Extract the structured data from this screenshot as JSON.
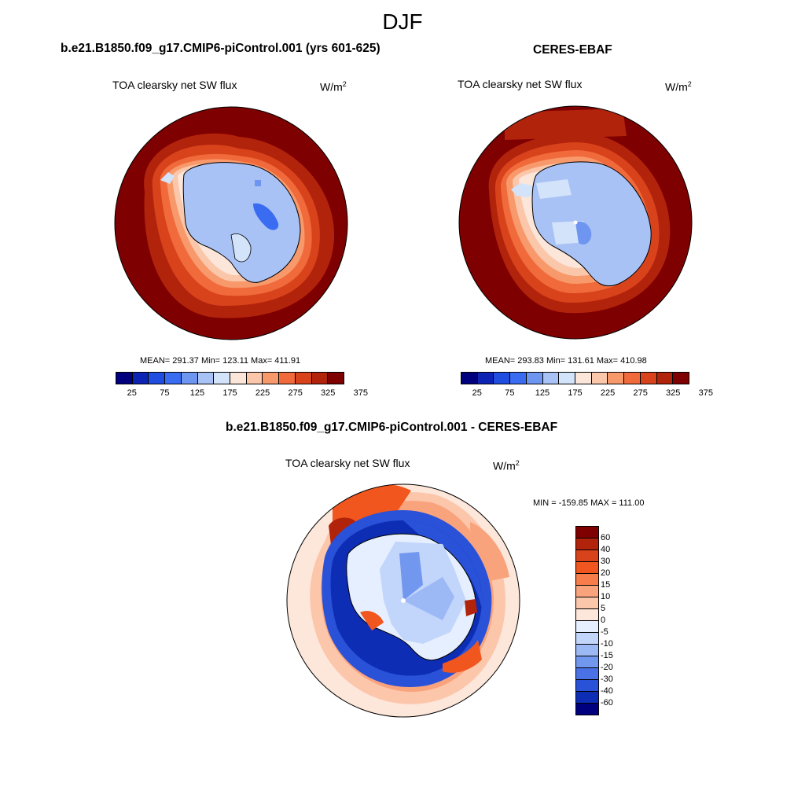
{
  "season": "DJF",
  "panels": {
    "model": {
      "title": "b.e21.B1850.f09_g17.CMIP6-piControl.001 (yrs 601-625)",
      "variable": "TOA clearsky net SW flux",
      "units_base": "W/m",
      "units_exp": "2",
      "stats": "MEAN= 291.37  Min= 123.11  Max= 411.91"
    },
    "obs": {
      "title": "CERES-EBAF",
      "variable": "TOA clearsky net SW flux",
      "units_base": "W/m",
      "units_exp": "2",
      "stats": "MEAN= 293.83  Min= 131.61  Max= 410.98"
    },
    "diff": {
      "title": "b.e21.B1850.f09_g17.CMIP6-piControl.001 - CERES-EBAF",
      "variable": "TOA clearsky net SW flux",
      "units_base": "W/m",
      "units_exp": "2",
      "stats": "MIN = -159.85 MAX = 111.00"
    }
  },
  "colorbar_abs": {
    "colors": [
      "#00007f",
      "#0d23b4",
      "#1f4de0",
      "#3a6cf2",
      "#6e96f0",
      "#a9c2f5",
      "#d2e3fa",
      "#fce6da",
      "#fbc7ab",
      "#f8996b",
      "#f06a3c",
      "#d8431c",
      "#b2230c",
      "#7f0000"
    ],
    "labels": [
      "25",
      "75",
      "125",
      "175",
      "225",
      "275",
      "325",
      "375"
    ]
  },
  "colorbar_diff": {
    "colors": [
      "#7f0000",
      "#b2230c",
      "#d8431c",
      "#f0561e",
      "#f77e4a",
      "#f9a37d",
      "#fcc6ab",
      "#fde6da",
      "#e6efff",
      "#c2d5fb",
      "#9cb8f5",
      "#7297ee",
      "#4a72e6",
      "#2952d8",
      "#0d2db4",
      "#00007f"
    ],
    "labels": [
      "60",
      "40",
      "30",
      "20",
      "15",
      "10",
      "5",
      "0",
      "-5",
      "-10",
      "-15",
      "-20",
      "-30",
      "-40",
      "-60"
    ]
  },
  "chart_data": [
    {
      "type": "heatmap",
      "title": "b.e21.B1850.f09_g17.CMIP6-piControl.001 (yrs 601-625)",
      "subtitle": "TOA clearsky net SW flux",
      "units": "W/m2",
      "projection": "south-polar stereographic",
      "region": "Antarctica / Southern Ocean",
      "mean": 291.37,
      "min": 123.11,
      "max": 411.91,
      "levels": [
        25,
        50,
        75,
        100,
        125,
        150,
        175,
        200,
        225,
        250,
        275,
        300,
        325,
        350,
        375
      ]
    },
    {
      "type": "heatmap",
      "title": "CERES-EBAF",
      "subtitle": "TOA clearsky net SW flux",
      "units": "W/m2",
      "projection": "south-polar stereographic",
      "region": "Antarctica / Southern Ocean",
      "mean": 293.83,
      "min": 131.61,
      "max": 410.98,
      "levels": [
        25,
        50,
        75,
        100,
        125,
        150,
        175,
        200,
        225,
        250,
        275,
        300,
        325,
        350,
        375
      ]
    },
    {
      "type": "heatmap",
      "title": "b.e21.B1850.f09_g17.CMIP6-piControl.001 - CERES-EBAF",
      "subtitle": "TOA clearsky net SW flux",
      "units": "W/m2",
      "projection": "south-polar stereographic",
      "region": "Antarctica / Southern Ocean",
      "min": -159.85,
      "max": 111.0,
      "levels": [
        -60,
        -40,
        -30,
        -20,
        -15,
        -10,
        -5,
        0,
        5,
        10,
        15,
        20,
        30,
        40,
        60
      ]
    }
  ]
}
